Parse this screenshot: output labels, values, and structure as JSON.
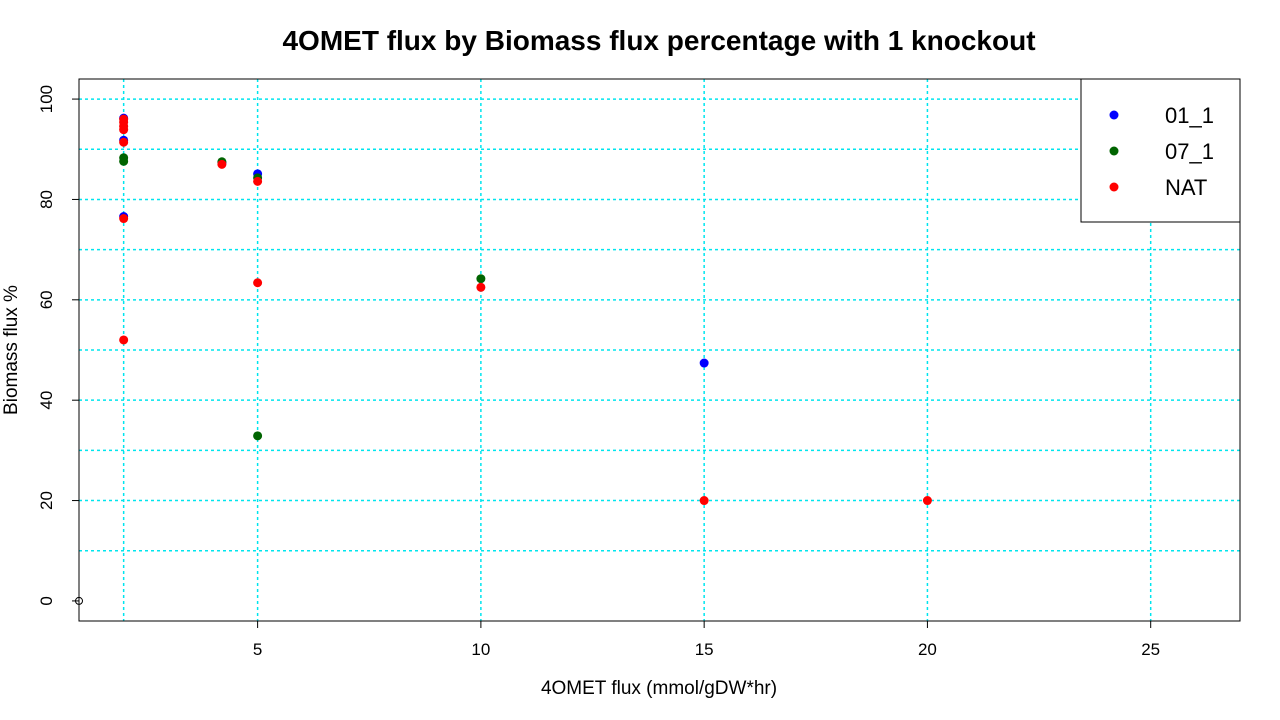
{
  "chart_data": {
    "type": "scatter",
    "title": "4OMET flux by Biomass flux percentage with 1 knockout",
    "xlabel": "4OMET flux (mmol/gDW*hr)",
    "ylabel": "Biomass flux %",
    "xlim": [
      1,
      27
    ],
    "ylim": [
      -4,
      104
    ],
    "x_ticks": [
      5,
      10,
      15,
      20,
      25
    ],
    "y_ticks": [
      0,
      20,
      40,
      60,
      80,
      100
    ],
    "x_gridlines": [
      2,
      5,
      10,
      15,
      20,
      25
    ],
    "y_gridlines": [
      10,
      20,
      30,
      40,
      50,
      60,
      70,
      80,
      90,
      100
    ],
    "grid": true,
    "grid_color": "#00e5ee",
    "legend_position": "top-right",
    "origin_point": {
      "x": 1,
      "y": 0
    },
    "series": [
      {
        "name": "01_1",
        "color": "#0000ff",
        "points": [
          [
            2,
            96.2
          ],
          [
            2,
            91.8
          ],
          [
            2,
            76.6
          ],
          [
            4.2,
            87.3
          ],
          [
            5,
            85.1
          ],
          [
            15,
            47.4
          ]
        ]
      },
      {
        "name": "07_1",
        "color": "#006400",
        "points": [
          [
            2,
            88.3
          ],
          [
            2,
            87.6
          ],
          [
            4.2,
            87.5
          ],
          [
            5,
            84.3
          ],
          [
            5,
            32.9
          ],
          [
            10,
            64.2
          ]
        ]
      },
      {
        "name": "NAT",
        "color": "#ff0000",
        "points": [
          [
            2,
            96.0
          ],
          [
            2,
            95.4
          ],
          [
            2,
            94.6
          ],
          [
            2,
            93.9
          ],
          [
            2,
            91.4
          ],
          [
            2,
            76.2
          ],
          [
            2,
            52.0
          ],
          [
            4.2,
            87.0
          ],
          [
            5,
            83.6
          ],
          [
            5,
            63.4
          ],
          [
            10,
            62.5
          ],
          [
            15,
            20.0
          ],
          [
            20,
            20.0
          ]
        ]
      }
    ]
  }
}
